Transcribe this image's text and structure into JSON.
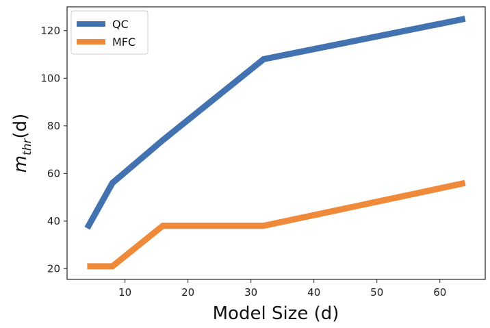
{
  "chart_data": {
    "type": "line",
    "title": "",
    "xlabel": "Model Size (d)",
    "ylabel": "m",
    "ylabel_subscript": "thr",
    "ylabel_suffix": "(d)",
    "xlim": [
      0.8,
      67.2
    ],
    "ylim": [
      15.5,
      130
    ],
    "xticks": [
      10,
      20,
      30,
      40,
      50,
      60
    ],
    "yticks": [
      20,
      40,
      60,
      80,
      100,
      120
    ],
    "grid": false,
    "legend_position": "top-left",
    "series": [
      {
        "name": "QC",
        "color": "#4372b0",
        "x": [
          4,
          8,
          16,
          32,
          64
        ],
        "y": [
          37,
          56,
          74,
          108,
          125
        ]
      },
      {
        "name": "MFC",
        "color": "#ef8a3a",
        "x": [
          4,
          8,
          16,
          32,
          64
        ],
        "y": [
          21,
          21,
          38,
          38,
          56
        ]
      }
    ]
  }
}
